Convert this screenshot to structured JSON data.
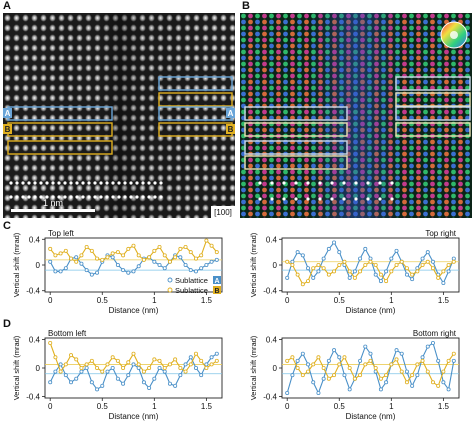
{
  "panels": {
    "a_label": "A",
    "b_label": "B",
    "c_label": "C",
    "d_label": "D"
  },
  "image_a": {
    "scale_bar": "1 nm",
    "zone_axis": "[100]",
    "marker_a": "A",
    "marker_b": "B"
  },
  "image_b": {
    "marker_a": "A",
    "marker_b": "B"
  },
  "colors": {
    "sublattice_a": "#4a90c8",
    "sublattice_b": "#e0b020",
    "ref_a": "#7fc4e8",
    "ref_b": "#ebcd5a",
    "axis": "#222222"
  },
  "legend": {
    "a": "Sublattice",
    "a_tag": "A",
    "b": "Sublattice",
    "b_tag": "B"
  },
  "chart_data": [
    {
      "type": "line",
      "title": "Top left",
      "xlabel": "Distance (nm)",
      "ylabel": "Vertical shift (mrad)",
      "xlim": [
        -0.05,
        1.65
      ],
      "ylim": [
        -0.42,
        0.42
      ],
      "xticks": [
        0,
        0.5,
        1,
        1.5
      ],
      "xticklabels": [
        "0",
        "0.5",
        "1",
        "1.5"
      ],
      "yticks": [
        -0.4,
        0,
        0.4
      ],
      "yticklabels": [
        "-0.4",
        "0",
        "0.4"
      ],
      "reference_lines": {
        "A": -0.08,
        "B": 0.08
      },
      "series": [
        {
          "name": "Sublattice A",
          "x": [
            0,
            0.05,
            0.1,
            0.15,
            0.2,
            0.25,
            0.3,
            0.35,
            0.4,
            0.45,
            0.5,
            0.55,
            0.6,
            0.65,
            0.7,
            0.75,
            0.8,
            0.85,
            0.9,
            0.95,
            1.0,
            1.05,
            1.1,
            1.15,
            1.2,
            1.25,
            1.3,
            1.35,
            1.4,
            1.45,
            1.5,
            1.55,
            1.6
          ],
          "y": [
            0.05,
            -0.1,
            -0.1,
            -0.05,
            0.1,
            0.12,
            0.02,
            -0.08,
            -0.15,
            -0.12,
            0.05,
            0.15,
            0.12,
            0.0,
            -0.08,
            -0.12,
            -0.1,
            -0.02,
            0.1,
            0.12,
            0.05,
            0.0,
            -0.05,
            0.05,
            0.15,
            0.12,
            0.0,
            -0.08,
            -0.1,
            -0.05,
            0.0,
            0.05,
            0.08
          ]
        },
        {
          "name": "Sublattice B",
          "x": [
            0,
            0.05,
            0.1,
            0.15,
            0.2,
            0.25,
            0.3,
            0.35,
            0.4,
            0.45,
            0.5,
            0.55,
            0.6,
            0.65,
            0.7,
            0.75,
            0.8,
            0.85,
            0.9,
            0.95,
            1.0,
            1.05,
            1.1,
            1.15,
            1.2,
            1.25,
            1.3,
            1.35,
            1.4,
            1.45,
            1.5,
            1.55,
            1.6
          ],
          "y": [
            0.25,
            0.15,
            0.18,
            0.22,
            0.1,
            0.05,
            0.15,
            0.28,
            0.22,
            0.1,
            0.08,
            0.12,
            0.18,
            0.2,
            0.15,
            0.25,
            0.3,
            0.15,
            0.08,
            0.12,
            0.22,
            0.28,
            0.15,
            0.05,
            0.12,
            0.25,
            0.28,
            0.2,
            0.1,
            0.15,
            0.38,
            0.3,
            0.2
          ]
        }
      ]
    },
    {
      "type": "line",
      "title": "Top right",
      "xlabel": "Distance (nm)",
      "ylabel": "Vertical shift (mrad)",
      "xlim": [
        -0.05,
        1.65
      ],
      "ylim": [
        -0.42,
        0.42
      ],
      "xticks": [
        0,
        0.5,
        1,
        1.5
      ],
      "xticklabels": [
        "0",
        "0.5",
        "1",
        "1.5"
      ],
      "yticks": [
        -0.4,
        0,
        0.4
      ],
      "yticklabels": [
        "-0.4",
        "0",
        "0.4"
      ],
      "reference_lines": {
        "A": -0.08,
        "B": 0.05
      },
      "series": [
        {
          "name": "Sublattice A",
          "x": [
            0,
            0.05,
            0.1,
            0.15,
            0.2,
            0.25,
            0.3,
            0.35,
            0.4,
            0.45,
            0.5,
            0.55,
            0.6,
            0.65,
            0.7,
            0.75,
            0.8,
            0.85,
            0.9,
            0.95,
            1.0,
            1.05,
            1.1,
            1.15,
            1.2,
            1.25,
            1.3,
            1.35,
            1.4,
            1.45,
            1.5,
            1.55,
            1.6
          ],
          "y": [
            -0.2,
            0.05,
            0.2,
            0.15,
            -0.05,
            -0.2,
            -0.1,
            0.1,
            0.25,
            0.35,
            0.2,
            0.0,
            -0.2,
            -0.1,
            0.1,
            0.25,
            0.1,
            -0.15,
            -0.25,
            -0.1,
            0.1,
            0.22,
            0.05,
            -0.15,
            -0.22,
            -0.05,
            0.1,
            0.2,
            0.05,
            -0.15,
            -0.28,
            -0.1,
            0.1
          ]
        },
        {
          "name": "Sublattice B",
          "x": [
            0,
            0.05,
            0.1,
            0.15,
            0.2,
            0.25,
            0.3,
            0.35,
            0.4,
            0.45,
            0.5,
            0.55,
            0.6,
            0.65,
            0.7,
            0.75,
            0.8,
            0.85,
            0.9,
            0.95,
            1.0,
            1.05,
            1.1,
            1.15,
            1.2,
            1.25,
            1.3,
            1.35,
            1.4,
            1.45,
            1.5,
            1.55,
            1.6
          ],
          "y": [
            0.05,
            0.0,
            -0.15,
            -0.3,
            -0.25,
            -0.05,
            0.0,
            -0.05,
            -0.15,
            -0.1,
            0.0,
            0.05,
            -0.1,
            -0.2,
            -0.1,
            0.0,
            0.05,
            0.0,
            -0.15,
            -0.25,
            -0.1,
            0.0,
            0.05,
            -0.05,
            -0.15,
            -0.1,
            0.0,
            0.05,
            -0.05,
            -0.2,
            -0.1,
            0.0,
            0.05
          ]
        }
      ]
    },
    {
      "type": "line",
      "title": "Bottom left",
      "xlabel": "Distance (nm)",
      "ylabel": "Vertical shift (mrad)",
      "xlim": [
        -0.05,
        1.65
      ],
      "ylim": [
        -0.42,
        0.42
      ],
      "xticks": [
        0,
        0.5,
        1,
        1.5
      ],
      "xticklabels": [
        "0",
        "0.5",
        "1",
        "1.5"
      ],
      "yticks": [
        -0.4,
        0,
        0.4
      ],
      "yticklabels": [
        "-0.4",
        "0",
        "0.4"
      ],
      "reference_lines": {
        "A": -0.08,
        "B": 0.05
      },
      "series": [
        {
          "name": "Sublattice A",
          "x": [
            0,
            0.05,
            0.1,
            0.15,
            0.2,
            0.25,
            0.3,
            0.35,
            0.4,
            0.45,
            0.5,
            0.55,
            0.6,
            0.65,
            0.7,
            0.75,
            0.8,
            0.85,
            0.9,
            0.95,
            1.0,
            1.05,
            1.1,
            1.15,
            1.2,
            1.25,
            1.3,
            1.35,
            1.4,
            1.45,
            1.5,
            1.55,
            1.6
          ],
          "y": [
            -0.2,
            -0.05,
            0.05,
            -0.1,
            -0.2,
            -0.15,
            -0.05,
            0.0,
            -0.2,
            -0.3,
            -0.25,
            -0.05,
            0.0,
            -0.15,
            -0.22,
            -0.1,
            0.05,
            0.0,
            -0.2,
            -0.28,
            -0.15,
            0.0,
            -0.05,
            -0.22,
            -0.25,
            -0.1,
            0.05,
            0.15,
            0.0,
            -0.1,
            0.05,
            0.15,
            0.2
          ]
        },
        {
          "name": "Sublattice B",
          "x": [
            0,
            0.05,
            0.1,
            0.15,
            0.2,
            0.25,
            0.3,
            0.35,
            0.4,
            0.45,
            0.5,
            0.55,
            0.6,
            0.65,
            0.7,
            0.75,
            0.8,
            0.85,
            0.9,
            0.95,
            1.0,
            1.05,
            1.1,
            1.15,
            1.2,
            1.25,
            1.3,
            1.35,
            1.4,
            1.45,
            1.5,
            1.55,
            1.6
          ],
          "y": [
            0.35,
            0.15,
            -0.05,
            0.05,
            0.18,
            0.12,
            0.0,
            0.05,
            0.1,
            0.0,
            -0.05,
            0.05,
            0.15,
            0.1,
            0.0,
            0.08,
            0.2,
            0.05,
            -0.05,
            0.0,
            0.12,
            0.1,
            0.0,
            0.05,
            0.12,
            0.0,
            -0.05,
            0.05,
            0.2,
            0.1,
            0.0,
            0.05,
            0.1
          ]
        }
      ]
    },
    {
      "type": "line",
      "title": "Bottom right",
      "xlabel": "Distance (nm)",
      "ylabel": "Vertical shift (mrad)",
      "xlim": [
        -0.05,
        1.65
      ],
      "ylim": [
        -0.42,
        0.42
      ],
      "xticks": [
        0,
        0.5,
        1,
        1.5
      ],
      "xticklabels": [
        "0",
        "0.5",
        "1",
        "1.5"
      ],
      "yticks": [
        -0.4,
        0,
        0.4
      ],
      "yticklabels": [
        "-0.4",
        "0",
        "0.4"
      ],
      "reference_lines": {
        "A": -0.08,
        "B": 0.05
      },
      "series": [
        {
          "name": "Sublattice A",
          "x": [
            0,
            0.05,
            0.1,
            0.15,
            0.2,
            0.25,
            0.3,
            0.35,
            0.4,
            0.45,
            0.5,
            0.55,
            0.6,
            0.65,
            0.7,
            0.75,
            0.8,
            0.85,
            0.9,
            0.95,
            1.0,
            1.05,
            1.1,
            1.15,
            1.2,
            1.25,
            1.3,
            1.35,
            1.4,
            1.45,
            1.5,
            1.55,
            1.6
          ],
          "y": [
            -0.35,
            -0.1,
            0.1,
            0.2,
            0.05,
            -0.2,
            -0.35,
            -0.15,
            0.1,
            0.25,
            0.15,
            -0.1,
            -0.3,
            -0.15,
            0.1,
            0.3,
            0.2,
            -0.05,
            -0.3,
            -0.2,
            0.05,
            0.25,
            0.2,
            -0.05,
            -0.25,
            -0.1,
            0.15,
            0.3,
            0.35,
            0.1,
            -0.2,
            -0.3,
            0.1
          ]
        },
        {
          "name": "Sublattice B",
          "x": [
            0,
            0.05,
            0.1,
            0.15,
            0.2,
            0.25,
            0.3,
            0.35,
            0.4,
            0.45,
            0.5,
            0.55,
            0.6,
            0.65,
            0.7,
            0.75,
            0.8,
            0.85,
            0.9,
            0.95,
            1.0,
            1.05,
            1.1,
            1.15,
            1.2,
            1.25,
            1.3,
            1.35,
            1.4,
            1.45,
            1.5,
            1.55,
            1.6
          ],
          "y": [
            0.1,
            0.15,
            0.0,
            -0.1,
            -0.05,
            0.05,
            0.15,
            0.0,
            -0.15,
            -0.1,
            0.05,
            0.15,
            0.0,
            -0.15,
            -0.1,
            0.05,
            0.1,
            0.0,
            -0.15,
            -0.1,
            0.05,
            0.12,
            -0.05,
            -0.2,
            -0.1,
            0.05,
            0.1,
            -0.05,
            -0.2,
            -0.25,
            -0.05,
            0.1,
            0.2
          ]
        }
      ]
    }
  ]
}
